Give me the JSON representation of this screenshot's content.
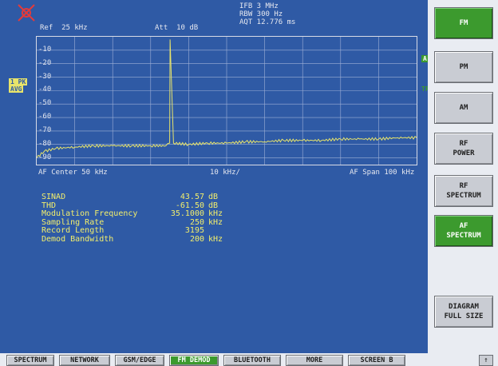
{
  "header": {
    "ref": "Ref  25 kHz",
    "att": "Att  10 dB",
    "ifb": "IFB 3 MHz",
    "rbw": "RBW 300 Hz",
    "aqt": "AQT 12.776 ms"
  },
  "side_labels": {
    "trace": "1 PK",
    "trace2": "AVG",
    "a_badge": "A",
    "trg": "TRG"
  },
  "y_ticks": [
    "-10",
    "-20",
    "-30",
    "-40",
    "-50",
    "-60",
    "-70",
    "-80",
    "-90"
  ],
  "x_axis": {
    "left": "AF Center 50 kHz",
    "mid": "10 kHz/",
    "right": "AF Span 100 kHz"
  },
  "results": [
    {
      "label": "SINAD",
      "value": "43.57",
      "unit": "dB"
    },
    {
      "label": "THD",
      "value": "-61.50",
      "unit": "dB"
    },
    {
      "label": "Modulation Frequency",
      "value": "35.1000",
      "unit": "kHz"
    },
    {
      "label": "Sampling Rate",
      "value": "250",
      "unit": "kHz"
    },
    {
      "label": "Record Length",
      "value": "3195",
      "unit": ""
    },
    {
      "label": "Demod Bandwidth",
      "value": "200",
      "unit": "kHz"
    }
  ],
  "softkeys": [
    {
      "label": "FM",
      "active": true
    },
    {
      "label": "PM",
      "active": false
    },
    {
      "label": "AM",
      "active": false
    },
    {
      "label": "RF\nPOWER",
      "active": false
    },
    {
      "label": "RF\nSPECTRUM",
      "active": false
    },
    {
      "label": "AF\nSPECTRUM",
      "active": true
    },
    {
      "label": "DIAGRAM\nFULL SIZE",
      "active": false
    }
  ],
  "hotkeys": [
    {
      "label": "SPECTRUM",
      "active": false
    },
    {
      "label": "NETWORK",
      "active": false
    },
    {
      "label": "GSM/EDGE",
      "active": false
    },
    {
      "label": "FM DEMOD",
      "active": true
    },
    {
      "label": "BLUETOOTH",
      "active": false
    },
    {
      "label": "MORE",
      "active": false
    },
    {
      "label": "SCREEN B",
      "active": false
    }
  ],
  "corner_button": "↑",
  "chart_data": {
    "type": "line",
    "x": [
      0,
      2,
      5,
      10,
      15,
      20,
      25,
      30,
      34,
      35,
      35.1,
      36,
      40,
      45,
      50,
      55,
      60,
      65,
      70,
      75,
      80,
      85,
      90,
      95,
      100
    ],
    "series": [
      {
        "values": [
          -90,
          -85,
          -83,
          -82,
          -81,
          -81,
          -81,
          -81,
          -81,
          -79,
          -2,
          -79,
          -80,
          -79,
          -79,
          -78,
          -78,
          -77,
          -77,
          -77,
          -76,
          -76,
          -76,
          -75,
          -75
        ]
      }
    ],
    "xlim": [
      0,
      100
    ],
    "ylim": [
      -95,
      0
    ],
    "grid": true
  },
  "colors": {
    "screen_bg": "#2f5aa5",
    "trace": "#e8e46a",
    "grid": "#9fb0d6",
    "active_key": "#3c9a2e"
  }
}
